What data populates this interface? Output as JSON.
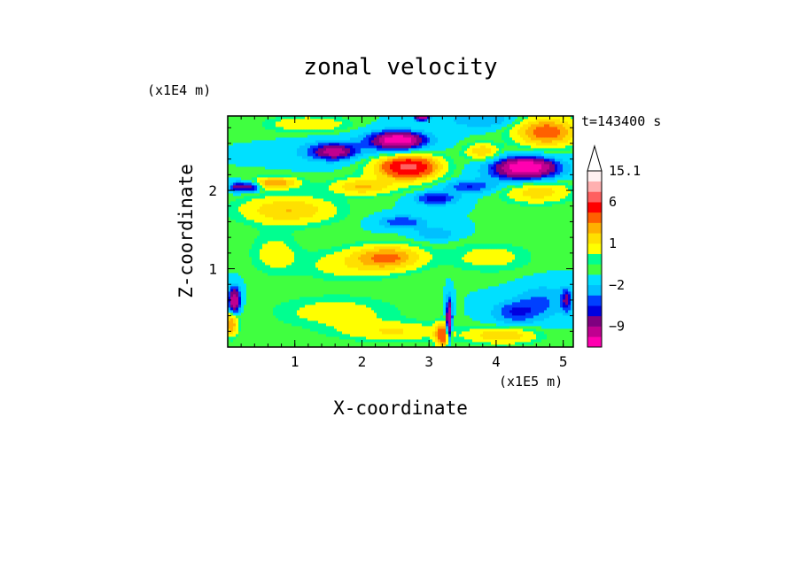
{
  "chart_data": {
    "type": "heatmap",
    "title": "zonal velocity",
    "xlabel": "X-coordinate",
    "ylabel": "Z-coordinate",
    "x_unit": "(x1E5 m)",
    "y_unit": "(x1E4 m)",
    "time_label": "t=143400 s",
    "xlim": [
      0,
      5.15
    ],
    "ylim": [
      0,
      2.95
    ],
    "x_ticks": [
      {
        "value": 1,
        "label": "1"
      },
      {
        "value": 2,
        "label": "2"
      },
      {
        "value": 3,
        "label": "3"
      },
      {
        "value": 4,
        "label": "4"
      },
      {
        "value": 5,
        "label": "5"
      }
    ],
    "y_ticks": [
      {
        "value": 1,
        "label": "1"
      },
      {
        "value": 2,
        "label": "2"
      }
    ],
    "background_value": 0,
    "features": [
      {
        "x": 0.7,
        "z": 2.1,
        "rx": 0.35,
        "rz": 0.07,
        "v": 4
      },
      {
        "x": 1.6,
        "z": 2.5,
        "rx": 0.25,
        "rz": 0.08,
        "v": -5
      },
      {
        "x": 1.5,
        "z": 2.5,
        "rx": 0.45,
        "rz": 0.13,
        "v": -3
      },
      {
        "x": 2.55,
        "z": 2.65,
        "rx": 0.3,
        "rz": 0.08,
        "v": -9
      },
      {
        "x": 2.5,
        "z": 2.62,
        "rx": 0.5,
        "rz": 0.15,
        "v": -4
      },
      {
        "x": 2.7,
        "z": 2.3,
        "rx": 0.35,
        "rz": 0.12,
        "v": 7
      },
      {
        "x": 2.65,
        "z": 2.3,
        "rx": 0.55,
        "rz": 0.2,
        "v": 3
      },
      {
        "x": 3.1,
        "z": 1.9,
        "rx": 0.3,
        "rz": 0.08,
        "v": -4
      },
      {
        "x": 4.45,
        "z": 2.3,
        "rx": 0.35,
        "rz": 0.1,
        "v": -10
      },
      {
        "x": 4.4,
        "z": 2.25,
        "rx": 0.55,
        "rz": 0.18,
        "v": -4
      },
      {
        "x": 4.75,
        "z": 2.75,
        "rx": 0.45,
        "rz": 0.18,
        "v": 5
      },
      {
        "x": 4.6,
        "z": 2.0,
        "rx": 0.5,
        "rz": 0.15,
        "v": 3
      },
      {
        "x": 0.15,
        "z": 2.05,
        "rx": 0.12,
        "rz": 0.06,
        "v": -5
      },
      {
        "x": 0.35,
        "z": 2.05,
        "rx": 0.12,
        "rz": 0.06,
        "v": -5
      },
      {
        "x": 2.0,
        "z": 2.05,
        "rx": 0.45,
        "rz": 0.1,
        "v": 3
      },
      {
        "x": 0.9,
        "z": 1.75,
        "rx": 0.7,
        "rz": 0.18,
        "v": 3
      },
      {
        "x": 2.6,
        "z": 1.6,
        "rx": 0.35,
        "rz": 0.08,
        "v": -3
      },
      {
        "x": 3.1,
        "z": 1.45,
        "rx": 0.3,
        "rz": 0.08,
        "v": -2
      },
      {
        "x": 2.4,
        "z": 1.15,
        "rx": 0.5,
        "rz": 0.15,
        "v": 4
      },
      {
        "x": 1.8,
        "z": 1.05,
        "rx": 0.7,
        "rz": 0.2,
        "v": 1.5
      },
      {
        "x": 3.9,
        "z": 1.15,
        "rx": 0.6,
        "rz": 0.18,
        "v": 1.5
      },
      {
        "x": 0.7,
        "z": 1.2,
        "rx": 0.35,
        "rz": 0.25,
        "v": 1.5
      },
      {
        "x": 4.3,
        "z": 0.45,
        "rx": 0.35,
        "rz": 0.15,
        "v": -3
      },
      {
        "x": 4.7,
        "z": 0.6,
        "rx": 0.35,
        "rz": 0.2,
        "v": -2
      },
      {
        "x": 1.6,
        "z": 0.45,
        "rx": 0.9,
        "rz": 0.2,
        "v": 1.5
      },
      {
        "x": 2.5,
        "z": 0.2,
        "rx": 0.8,
        "rz": 0.12,
        "v": 2
      },
      {
        "x": 4.1,
        "z": 0.15,
        "rx": 0.5,
        "rz": 0.1,
        "v": 3
      },
      {
        "x": 0.1,
        "z": 0.6,
        "rx": 0.08,
        "rz": 0.15,
        "v": -9
      },
      {
        "x": 0.05,
        "z": 0.3,
        "rx": 0.1,
        "rz": 0.15,
        "v": 4
      },
      {
        "x": 5.05,
        "z": 0.6,
        "rx": 0.08,
        "rz": 0.15,
        "v": -4
      },
      {
        "x": 3.3,
        "z": 0.35,
        "rx": 0.04,
        "rz": 0.25,
        "v": -9
      },
      {
        "x": 3.2,
        "z": 0.15,
        "rx": 0.1,
        "rz": 0.15,
        "v": 5
      },
      {
        "x": 3.8,
        "z": 2.9,
        "rx": 0.5,
        "rz": 0.1,
        "v": -2
      },
      {
        "x": 1.2,
        "z": 2.85,
        "rx": 0.6,
        "rz": 0.1,
        "v": 2
      },
      {
        "x": 2.9,
        "z": 2.95,
        "rx": 0.1,
        "rz": 0.05,
        "v": -9
      },
      {
        "x": 3.8,
        "z": 2.5,
        "rx": 0.25,
        "rz": 0.1,
        "v": 3
      },
      {
        "x": 3.6,
        "z": 2.05,
        "rx": 0.35,
        "rz": 0.08,
        "v": -3
      }
    ],
    "colorbar": {
      "levels": [
        {
          "v": -16,
          "color": "#ff00b0"
        },
        {
          "v": -9,
          "color": "#c00090"
        },
        {
          "v": -6,
          "color": "#800080"
        },
        {
          "v": -4,
          "color": "#0000e0"
        },
        {
          "v": -3,
          "color": "#0040ff"
        },
        {
          "v": -2,
          "color": "#00c0ff"
        },
        {
          "v": -1,
          "color": "#00e0ff"
        },
        {
          "v": 0,
          "color": "#40ff40"
        },
        {
          "v": 0.5,
          "color": "#00ff90"
        },
        {
          "v": 1,
          "color": "#ffff00"
        },
        {
          "v": 2,
          "color": "#ffe000"
        },
        {
          "v": 3,
          "color": "#ffb000"
        },
        {
          "v": 4,
          "color": "#ff6000"
        },
        {
          "v": 6,
          "color": "#ff0000"
        },
        {
          "v": 9,
          "color": "#ff6060"
        },
        {
          "v": 12,
          "color": "#ffb0b0"
        },
        {
          "v": 15.1,
          "color": "#fff0f0"
        }
      ],
      "tick_labels": [
        {
          "value": 15.1,
          "label": "15.1"
        },
        {
          "value": 6,
          "label": "6"
        },
        {
          "value": 1,
          "label": "1"
        },
        {
          "value": -2,
          "label": "−2"
        },
        {
          "value": -9,
          "label": "−9"
        }
      ]
    }
  }
}
